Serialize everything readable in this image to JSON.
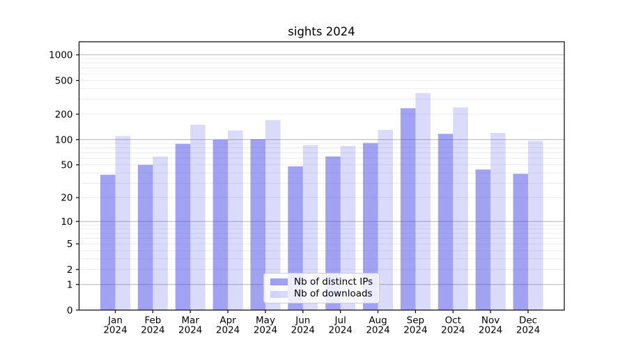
{
  "title": "sights 2024",
  "chart_data": {
    "type": "bar",
    "title": "sights 2024",
    "categories": [
      "Jan 2024",
      "Feb 2024",
      "Mar 2024",
      "Apr 2024",
      "May 2024",
      "Jun 2024",
      "Jul 2024",
      "Aug 2024",
      "Sep 2024",
      "Oct 2024",
      "Nov 2024",
      "Dec 2024"
    ],
    "series": [
      {
        "name": "Nb of distinct IPs",
        "base_color": "#4646e6",
        "alpha": 0.5,
        "values": [
          38,
          50,
          89,
          100,
          101,
          48,
          63,
          91,
          235,
          117,
          44,
          39
        ]
      },
      {
        "name": "Nb of downloads",
        "base_color": "#4646e6",
        "alpha": 0.2,
        "values": [
          110,
          63,
          150,
          128,
          170,
          86,
          84,
          130,
          355,
          240,
          120,
          97
        ]
      }
    ],
    "yscale": "log1p",
    "yticks": [
      0,
      1,
      2,
      5,
      10,
      20,
      50,
      100,
      200,
      500,
      1000
    ],
    "ylim": [
      0,
      1400
    ],
    "xlabel": "",
    "ylabel": "",
    "grid": {
      "horizontal": true,
      "major_at": [
        1,
        10,
        100,
        1000
      ],
      "minor": "multiples 2-9 of each decade",
      "major_color": "#b3b3b3",
      "minor_color": "#e8e8e8"
    },
    "legend_position": "lower center",
    "spine_color": "#000000",
    "background_color": "#ffffff"
  }
}
